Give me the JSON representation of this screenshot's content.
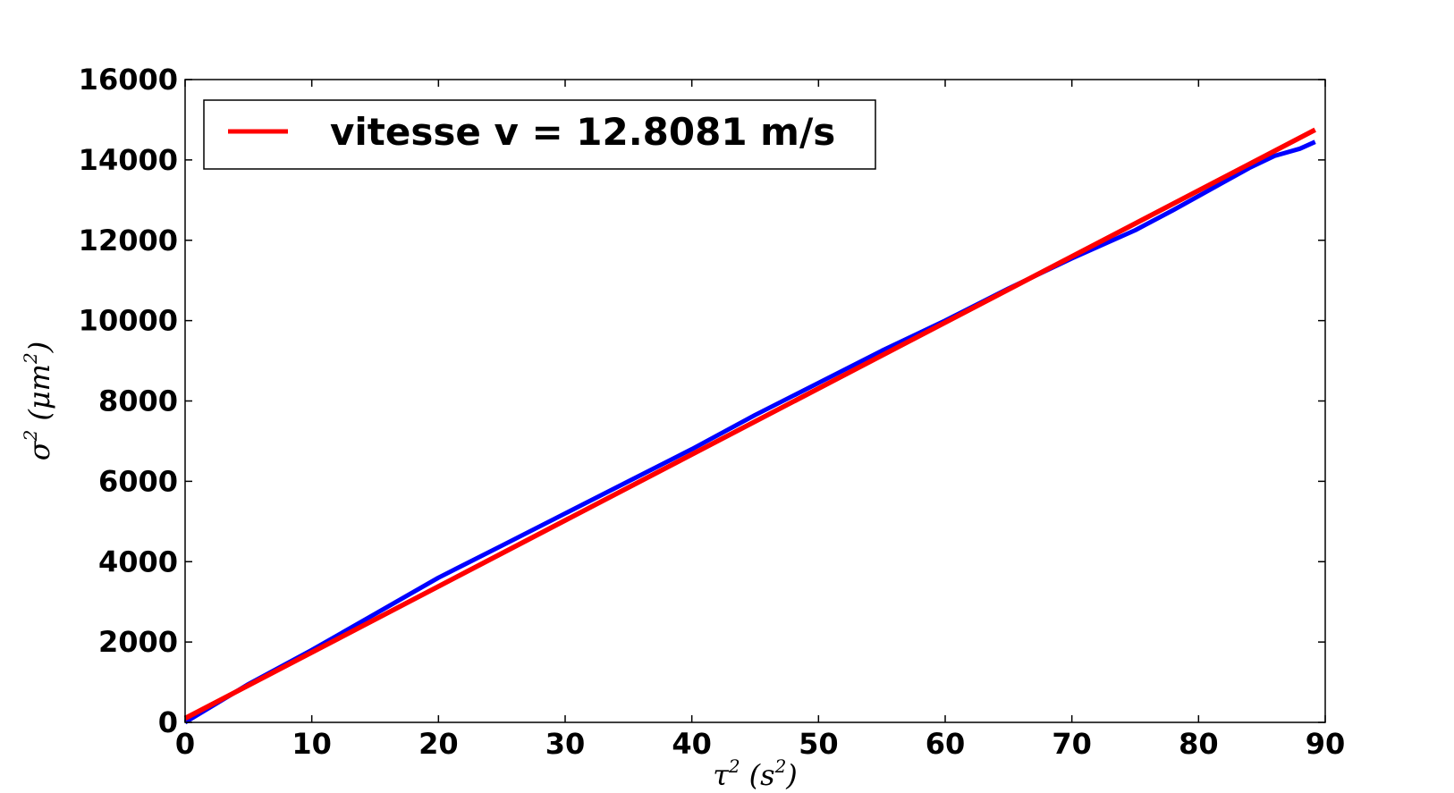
{
  "chart_data": {
    "type": "line",
    "xlabel_base": "τ",
    "xlabel_sup": "2",
    "xlabel_unit": "(s",
    "xlabel_unit_sup": "2",
    "xlabel_close": ")",
    "ylabel_base": "σ",
    "ylabel_sup": "2",
    "ylabel_unit": "(μm",
    "ylabel_unit_sup": "2",
    "ylabel_close": ")",
    "xlim": [
      0,
      90
    ],
    "ylim": [
      0,
      16000
    ],
    "xticks": [
      0,
      10,
      20,
      30,
      40,
      50,
      60,
      70,
      80,
      90
    ],
    "yticks": [
      0,
      2000,
      4000,
      6000,
      8000,
      10000,
      12000,
      14000,
      16000
    ],
    "grid": false,
    "legend_position": "top-left",
    "legend": [
      {
        "label": "vitesse v = 12.8081 m/s",
        "color": "#ff0000"
      }
    ],
    "series": [
      {
        "color": "#0000ff",
        "x": [
          0,
          5,
          10,
          15,
          20,
          25,
          30,
          35,
          40,
          45,
          50,
          55,
          60,
          65,
          70,
          75,
          78,
          80,
          82,
          84,
          86,
          88,
          89.2
        ],
        "y": [
          0,
          950,
          1800,
          2700,
          3600,
          4400,
          5200,
          6000,
          6800,
          7650,
          8450,
          9250,
          10000,
          10800,
          11550,
          12250,
          12750,
          13100,
          13450,
          13800,
          14100,
          14280,
          14450
        ]
      },
      {
        "color": "#ff0000",
        "x": [
          0,
          89.2
        ],
        "y": [
          100,
          14750
        ]
      }
    ]
  }
}
